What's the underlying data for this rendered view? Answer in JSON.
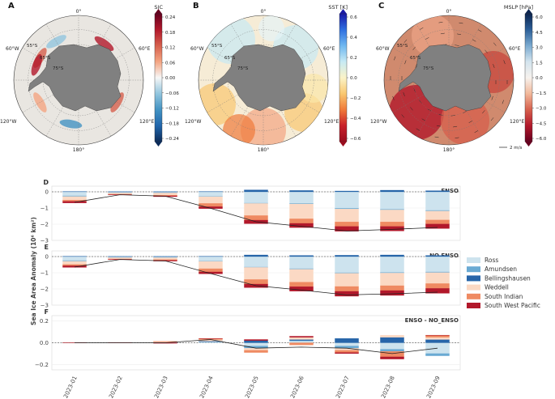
{
  "maps": {
    "colors": {
      "ocean": "#e9e6e1",
      "land": "#808080"
    },
    "lat_labels": [
      "55°S",
      "65°S",
      "75°S"
    ],
    "lon_labels": {
      "top": "0°",
      "right": "60°E",
      "left": "60°W",
      "lowleft": "120°W",
      "lowright": "120°E",
      "bottom": "180°"
    },
    "panels": [
      {
        "letter": "A",
        "cbar_title": "SIC",
        "ticks": [
          "0.24",
          "0.18",
          "0.12",
          "0.06",
          "0.00",
          "−0.06",
          "−0.12",
          "−0.18",
          "−0.24"
        ],
        "cmap": [
          "#67001f",
          "#b2182b",
          "#d6604d",
          "#f4a582",
          "#f7f7f7",
          "#92c5de",
          "#4393c3",
          "#2166ac",
          "#0c2c5a"
        ]
      },
      {
        "letter": "B",
        "cbar_title": "SST [K]",
        "ticks": [
          "0.6",
          "0.4",
          "0.2",
          "0.0",
          "−0.2",
          "−0.4",
          "−0.6"
        ],
        "cmap": [
          "#1a1aa8",
          "#2f6fe0",
          "#6fb8f0",
          "#c7eaf4",
          "#fbf3c8",
          "#f9c870",
          "#f07a3a",
          "#c8202a",
          "#9a0d1e"
        ]
      },
      {
        "letter": "C",
        "cbar_title": "MSLP [hPa]",
        "ticks": [
          "6.0",
          "4.5",
          "3.0",
          "1.5",
          "0.0",
          "−1.5",
          "−3.0",
          "−4.5",
          "−6.0"
        ],
        "cmap": [
          "#0c2550",
          "#2c5f98",
          "#7aaad0",
          "#d3e4ee",
          "#f7f2ee",
          "#f2b89a",
          "#d6604d",
          "#b2182b",
          "#67001f"
        ],
        "quiver_label": "2 m/s"
      }
    ]
  },
  "chart_data": {
    "type": "bar",
    "categories": [
      "2023-01",
      "2023-02",
      "2023-03",
      "2023-04",
      "2023-05",
      "2023-06",
      "2023-07",
      "2023-08",
      "2023-09"
    ],
    "ylabel": "Sea Ice Area Anomaly (10⁶ km²)",
    "legend": [
      {
        "name": "Ross",
        "color": "#cde3ee"
      },
      {
        "name": "Amundsen",
        "color": "#6aaad3"
      },
      {
        "name": "Bellingshausen",
        "color": "#2765a9"
      },
      {
        "name": "Weddell",
        "color": "#fbd9c4"
      },
      {
        "name": "South Indian",
        "color": "#ef8a62"
      },
      {
        "name": "South West Pacific",
        "color": "#b2182b"
      }
    ],
    "panels": [
      {
        "letter": "D",
        "title": "ENSO",
        "ylim": [
          -3,
          0.35
        ],
        "ticks": [
          0,
          -1,
          -2,
          -3
        ],
        "series": [
          {
            "name": "Ross",
            "values": [
              -0.25,
              -0.06,
              -0.05,
              -0.28,
              -0.7,
              -0.72,
              -1.02,
              -1.08,
              -1.15
            ]
          },
          {
            "name": "Amundsen",
            "values": [
              -0.04,
              -0.01,
              -0.02,
              -0.02,
              -0.02,
              -0.03,
              -0.04,
              -0.04,
              -0.04
            ]
          },
          {
            "name": "Bellingshausen",
            "values": [
              0.02,
              0.01,
              0.01,
              0.02,
              0.12,
              0.08,
              0.05,
              0.1,
              0.07
            ]
          },
          {
            "name": "Weddell",
            "values": [
              -0.22,
              -0.08,
              -0.14,
              -0.42,
              -0.75,
              -0.92,
              -0.8,
              -0.74,
              -0.55
            ]
          },
          {
            "name": "South Indian",
            "values": [
              -0.08,
              -0.02,
              -0.04,
              -0.2,
              -0.28,
              -0.28,
              -0.28,
              -0.28,
              -0.25
            ]
          },
          {
            "name": "South West Pacific",
            "values": [
              -0.1,
              -0.02,
              -0.05,
              -0.12,
              -0.22,
              -0.26,
              -0.3,
              -0.28,
              -0.28
            ]
          }
        ],
        "total": [
          -0.65,
          -0.18,
          -0.27,
          -1.02,
          -1.85,
          -2.13,
          -2.42,
          -2.32,
          -2.2
        ]
      },
      {
        "letter": "E",
        "title": "NO ENSO",
        "ylim": [
          -3,
          0.35
        ],
        "ticks": [
          0,
          -1,
          -2,
          -3
        ],
        "series": [
          {
            "name": "Ross",
            "values": [
              -0.25,
              -0.06,
              -0.05,
              -0.28,
              -0.65,
              -0.75,
              -1.0,
              -0.98,
              -0.95
            ]
          },
          {
            "name": "Amundsen",
            "values": [
              -0.04,
              -0.01,
              -0.02,
              -0.02,
              -0.02,
              -0.03,
              -0.03,
              -0.04,
              -0.04
            ]
          },
          {
            "name": "Bellingshausen",
            "values": [
              0.02,
              0.01,
              0.01,
              0.02,
              0.1,
              0.07,
              0.08,
              0.1,
              0.07
            ]
          },
          {
            "name": "Weddell",
            "values": [
              -0.2,
              -0.08,
              -0.12,
              -0.45,
              -0.75,
              -0.8,
              -0.82,
              -0.78,
              -0.68
            ]
          },
          {
            "name": "South Indian",
            "values": [
              -0.08,
              -0.02,
              -0.04,
              -0.2,
              -0.28,
              -0.28,
              -0.3,
              -0.3,
              -0.3
            ]
          },
          {
            "name": "South West Pacific",
            "values": [
              -0.1,
              -0.02,
              -0.05,
              -0.12,
              -0.22,
              -0.28,
              -0.3,
              -0.3,
              -0.3
            ]
          }
        ],
        "total": [
          -0.65,
          -0.18,
          -0.27,
          -1.05,
          -1.8,
          -2.07,
          -2.37,
          -2.3,
          -2.2
        ]
      },
      {
        "letter": "F",
        "title": "ENSO - NO_ENSO",
        "ylim": [
          -0.25,
          0.25
        ],
        "ticks": [
          0.2,
          0.0,
          -0.2
        ],
        "series": [
          {
            "name": "Ross",
            "values": [
              0.0,
              0.0,
              0.0,
              0.01,
              -0.03,
              0.02,
              -0.03,
              -0.06,
              -0.1
            ]
          },
          {
            "name": "Amundsen",
            "values": [
              0.0,
              0.0,
              0.0,
              0.0,
              -0.02,
              0.0,
              -0.02,
              -0.02,
              -0.02
            ]
          },
          {
            "name": "Bellingshausen",
            "values": [
              0.0,
              0.0,
              0.003,
              0.005,
              0.02,
              0.01,
              0.04,
              0.05,
              0.03
            ]
          },
          {
            "name": "Weddell",
            "values": [
              0.0,
              0.0,
              0.005,
              0.015,
              -0.02,
              0.02,
              -0.02,
              0.02,
              0.02
            ]
          },
          {
            "name": "South Indian",
            "values": [
              0.0,
              0.0,
              0.005,
              0.01,
              -0.02,
              -0.02,
              -0.02,
              -0.05,
              0.02
            ]
          },
          {
            "name": "South West Pacific",
            "values": [
              0.0,
              0.0,
              -0.005,
              0.0,
              0.01,
              0.01,
              -0.01,
              -0.02,
              0.0
            ]
          }
        ],
        "total": [
          0.0,
          0.0,
          0.0,
          0.03,
          -0.05,
          -0.04,
          -0.05,
          -0.1,
          -0.05
        ]
      }
    ]
  }
}
